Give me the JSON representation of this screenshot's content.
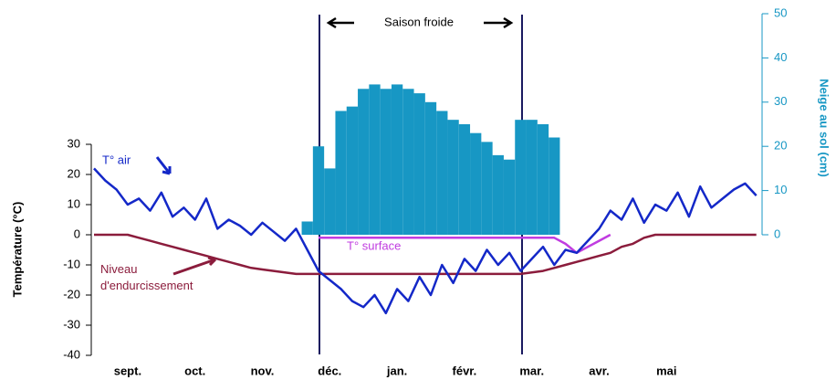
{
  "chart_data": {
    "type": "combo",
    "annotation": "Saison froide",
    "ylabel": "Température (°C)",
    "y2label": "Neige au sol (cm)",
    "categories": [
      null,
      null,
      null,
      "sept.",
      null,
      null,
      null,
      null,
      null,
      "oct.",
      null,
      null,
      null,
      null,
      null,
      "nov.",
      null,
      null,
      null,
      null,
      null,
      "déc.",
      null,
      null,
      null,
      null,
      null,
      "jan.",
      null,
      null,
      null,
      null,
      null,
      "févr.",
      null,
      null,
      null,
      null,
      null,
      "mar.",
      null,
      null,
      null,
      null,
      null,
      "avr.",
      null,
      null,
      null,
      null,
      null,
      "mai",
      null,
      null,
      null,
      null,
      null,
      null,
      null,
      null
    ],
    "ylim": [
      -40,
      30
    ],
    "yticks": [
      -40,
      -30,
      -20,
      -10,
      0,
      10,
      20,
      30
    ],
    "y2lim": [
      0,
      50
    ],
    "y2ticks": [
      0,
      10,
      20,
      30,
      40,
      50
    ],
    "series": [
      {
        "name": "Neige au sol",
        "type": "bar",
        "axis": "y2",
        "color": "#1797c4",
        "values": [
          0,
          0,
          0,
          0,
          0,
          0,
          0,
          0,
          0,
          0,
          0,
          0,
          0,
          0,
          0,
          0,
          0,
          0,
          0,
          3,
          20,
          15,
          28,
          29,
          33,
          34,
          33,
          34,
          33,
          32,
          30,
          28,
          26,
          25,
          23,
          21,
          18,
          17,
          26,
          26,
          25,
          22,
          0,
          0,
          0,
          0,
          0,
          0,
          0,
          0,
          0,
          0,
          0,
          0,
          0,
          0,
          0,
          0,
          0,
          0
        ]
      },
      {
        "name": "Niveau d'endurcissement",
        "type": "line",
        "color": "#8b1c3c",
        "values": [
          0,
          0,
          0,
          0,
          -1,
          -2,
          -3,
          -4,
          -5,
          -6,
          -7,
          -8,
          -9,
          -10,
          -11,
          -11.5,
          -12,
          -12.5,
          -13,
          -13,
          -13,
          -13,
          -13,
          -13,
          -13,
          -13,
          -13,
          -13,
          -13,
          -13,
          -13,
          -13,
          -13,
          -13,
          -13,
          -13,
          -13,
          -13,
          -13,
          -12.5,
          -12,
          -11,
          -10,
          -9,
          -8,
          -7,
          -6,
          -4,
          -3,
          -1,
          0,
          0,
          0,
          0,
          0,
          0,
          0,
          0,
          0,
          0
        ]
      },
      {
        "name": "T° surface",
        "type": "line",
        "color": "#c03ce0",
        "values": [
          null,
          null,
          null,
          null,
          null,
          null,
          null,
          null,
          null,
          null,
          null,
          null,
          null,
          null,
          null,
          null,
          null,
          null,
          null,
          null,
          -1,
          -1,
          -1,
          -1,
          -1,
          -1,
          -1,
          -1,
          -1,
          -1,
          -1,
          -1,
          -1,
          -1,
          -1,
          -1,
          -1,
          -1,
          -1,
          -1,
          -1,
          -1,
          -3,
          -6,
          -4,
          -2,
          0,
          null,
          null,
          null,
          null,
          null,
          null,
          null,
          null,
          null,
          null,
          null,
          null,
          null
        ]
      },
      {
        "name": "T° air",
        "type": "line",
        "color": "#1428c8",
        "values": [
          22,
          18,
          15,
          10,
          12,
          8,
          14,
          6,
          9,
          5,
          12,
          2,
          5,
          3,
          0,
          4,
          1,
          -2,
          2,
          -5,
          -12,
          -15,
          -18,
          -22,
          -24,
          -20,
          -26,
          -18,
          -22,
          -14,
          -20,
          -10,
          -16,
          -8,
          -12,
          -5,
          -10,
          -6,
          -12,
          -8,
          -4,
          -10,
          -5,
          -6,
          -2,
          2,
          8,
          5,
          12,
          4,
          10,
          8,
          14,
          6,
          16,
          9,
          12,
          15,
          17,
          13
        ]
      }
    ]
  }
}
